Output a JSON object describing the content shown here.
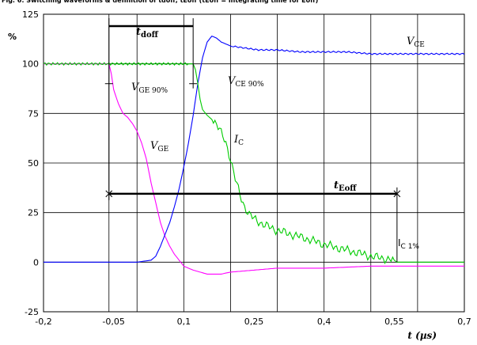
{
  "header": {
    "title": "Fig. 6: Switching waveforms & definition of tdoff, tEoff (tEoff = integrating time for Eoff)"
  },
  "chart_data": {
    "type": "line",
    "title": "Fig. 6: Switching waveforms & definition of tdoff, tEoff (tEoff = integrating time for Eoff)",
    "xlabel": "t (µs)",
    "ylabel": "%",
    "xlim": [
      -0.2,
      0.7
    ],
    "ylim": [
      -25,
      125
    ],
    "grid": true,
    "x_ticks": [
      {
        "v": -0.2,
        "label": "-0,2"
      },
      {
        "v": -0.05,
        "label": "-0,05"
      },
      {
        "v": 0.1,
        "label": "0,1"
      },
      {
        "v": 0.25,
        "label": "0,25"
      },
      {
        "v": 0.4,
        "label": "0,4"
      },
      {
        "v": 0.55,
        "label": "0,55"
      },
      {
        "v": 0.7,
        "label": "0,7"
      }
    ],
    "x_gridlines": [
      -0.06,
      0.0,
      0.1,
      0.2,
      0.3,
      0.4,
      0.5,
      0.6,
      0.7
    ],
    "y_ticks": [
      {
        "v": -25,
        "label": "-25"
      },
      {
        "v": 0,
        "label": "0"
      },
      {
        "v": 25,
        "label": "25"
      },
      {
        "v": 50,
        "label": "50"
      },
      {
        "v": 75,
        "label": "75"
      },
      {
        "v": 100,
        "label": "100"
      },
      {
        "v": 125,
        "label": "125"
      }
    ],
    "series": [
      {
        "key": "vge",
        "color": "#ff00ff",
        "x": [
          -0.2,
          -0.06,
          -0.055,
          -0.05,
          -0.04,
          -0.03,
          -0.02,
          -0.01,
          0.0,
          0.01,
          0.02,
          0.03,
          0.04,
          0.05,
          0.06,
          0.07,
          0.08,
          0.09,
          0.1,
          0.12,
          0.15,
          0.18,
          0.2,
          0.3,
          0.4,
          0.5,
          0.6,
          0.7
        ],
        "y": [
          100,
          100,
          95,
          87,
          80,
          75,
          73,
          70,
          66,
          60,
          52,
          40,
          30,
          20,
          13,
          8,
          4,
          1,
          -2,
          -4,
          -6,
          -6,
          -5,
          -3,
          -3,
          -2,
          -2,
          -2
        ]
      },
      {
        "key": "vce",
        "color": "#0000ff",
        "x": [
          -0.2,
          -0.1,
          0.0,
          0.03,
          0.04,
          0.05,
          0.06,
          0.07,
          0.08,
          0.09,
          0.1,
          0.11,
          0.12,
          0.13,
          0.14,
          0.15,
          0.16,
          0.17,
          0.18,
          0.2,
          0.23,
          0.26,
          0.3,
          0.35,
          0.4,
          0.45,
          0.5,
          0.55,
          0.6,
          0.65,
          0.7
        ],
        "y": [
          0,
          0,
          0,
          1,
          3,
          8,
          14,
          20,
          28,
          37,
          48,
          60,
          74,
          90,
          103,
          111,
          114,
          113,
          111,
          109,
          108,
          107,
          107,
          106,
          106,
          106,
          105,
          105,
          105,
          105,
          105
        ]
      },
      {
        "key": "ic",
        "color": "#00cc00",
        "x": [
          -0.2,
          -0.1,
          0.0,
          0.05,
          0.1,
          0.12,
          0.125,
          0.13,
          0.135,
          0.14,
          0.15,
          0.16,
          0.17,
          0.18,
          0.19,
          0.2,
          0.21,
          0.22,
          0.23,
          0.24,
          0.25,
          0.27,
          0.3,
          0.33,
          0.36,
          0.4,
          0.45,
          0.5,
          0.55,
          0.556,
          0.6,
          0.7
        ],
        "y": [
          100,
          100,
          100,
          100,
          100,
          100,
          97,
          90,
          82,
          77,
          74,
          72,
          70,
          65,
          60,
          52,
          42,
          34,
          28,
          24,
          22,
          19,
          16,
          14,
          12,
          9,
          6,
          3,
          1,
          0,
          0,
          0
        ]
      }
    ],
    "annotations": {
      "tdoff": "t",
      "tdoff_sub": "doff",
      "teoff": "t",
      "teoff_sub": "Eoff",
      "vce": "V",
      "vce_sub": "CE",
      "vge90": "V",
      "vge90_sub": "GE 90%",
      "vce90": "V",
      "vce90_sub": "CE 90%",
      "vge": "V",
      "vge_sub": "GE",
      "ic": "I",
      "ic_sub": "C",
      "ic1": "I",
      "ic1_sub": "C 1%"
    },
    "markers": {
      "tdoff_start": -0.06,
      "tdoff_end": 0.12,
      "teoff_end": 0.556,
      "vge90_level": 90,
      "vce90_level": 90,
      "tdoff_level": 119,
      "teoff_level": 34.5
    }
  }
}
